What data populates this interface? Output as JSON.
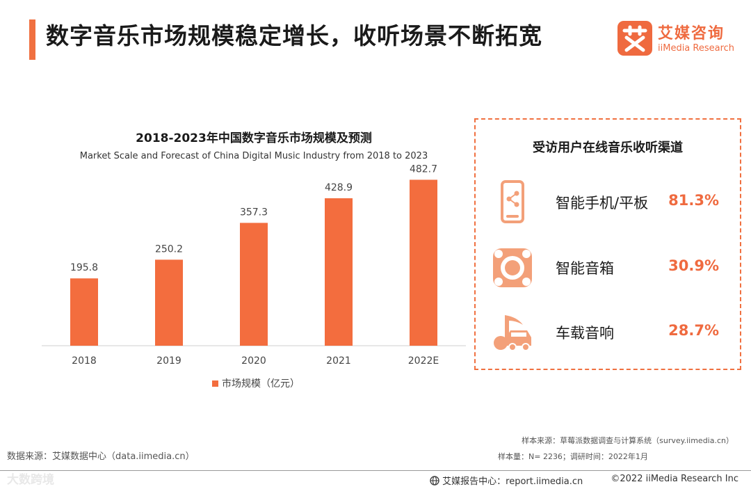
{
  "header": {
    "title": "数字音乐市场规模稳定增长，收听场景不断拓宽",
    "brand_name": "艾媒咨询",
    "brand_sub": "iiMedia Research"
  },
  "colors": {
    "accent": "#ef6a3f",
    "bar": "#f36d3e"
  },
  "chart_data": {
    "type": "bar",
    "title": "2018-2023年中国数字音乐市场规模及预测",
    "subtitle": "Market  Scale and Forecast of China Digital Music Industry from 2018 to 2023",
    "categories": [
      "2018",
      "2019",
      "2020",
      "2021",
      "2022E"
    ],
    "series": [
      {
        "name": "市场规模（亿元）",
        "values": [
          195.8,
          250.2,
          357.3,
          428.9,
          482.7
        ]
      }
    ],
    "value_labels": [
      "195.8",
      "250.2",
      "357.3",
      "428.9",
      "482.7"
    ],
    "ylim": [
      0,
      520
    ],
    "xlabel": "",
    "ylabel": "",
    "legend": "bottom-center",
    "grid": false
  },
  "channels": {
    "title": "受访用户在线音乐收听渠道",
    "items": [
      {
        "icon": "smartphone-share-icon",
        "label": "智能手机/平板",
        "value": "81.3%"
      },
      {
        "icon": "speaker-icon",
        "label": "智能音箱",
        "value": "30.9%"
      },
      {
        "icon": "car-music-icon",
        "label": "车载音响",
        "value": "28.7%"
      }
    ]
  },
  "footer": {
    "data_source": "数据来源：艾媒数据中心（data.iimedia.cn）",
    "sample_source": "样本来源：草莓派数据调查与计算系统（survey.iimedia.cn）",
    "sample_size": "样本量：N= 2236；调研时间：2022年1月",
    "report_center": "艾媒报告中心：report.iimedia.cn",
    "copyright": "©2022  iiMedia Research  Inc",
    "watermark": "大数跨境"
  }
}
